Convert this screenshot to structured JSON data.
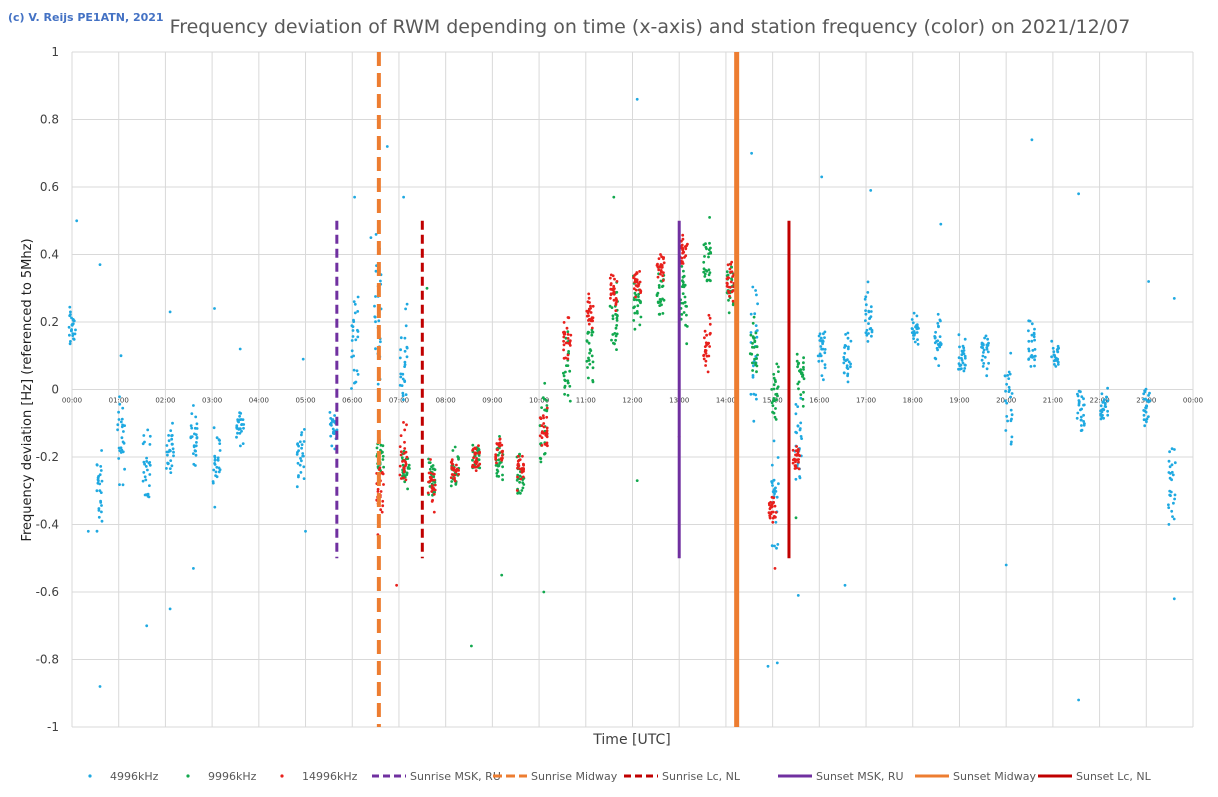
{
  "copyright": "(c) V. Reijs  PE1ATN, 2021",
  "chart_data": {
    "type": "scatter",
    "title": "Frequency deviation of RWM depending on time (x-axis) and station frequency (color) on 2021/12/07",
    "xlabel": "Time [UTC]",
    "ylabel": "Frequency deviation [Hz] (referenced to 5Mhz)",
    "xlim": [
      0,
      24
    ],
    "ylim": [
      -1,
      1
    ],
    "y_ticks": [
      "1",
      "0.8",
      "0.6",
      "0.4",
      "0.2",
      "0",
      "-0.2",
      "-0.4",
      "-0.6",
      "-0.8",
      "-1"
    ],
    "x_ticks": [
      "00:00",
      "01:00",
      "02:00",
      "03:00",
      "04:00",
      "05:00",
      "06:00",
      "07:00",
      "08:00",
      "09:00",
      "10:00",
      "11:00",
      "12:00",
      "13:00",
      "14:00",
      "15:00",
      "16:00",
      "17:00",
      "18:00",
      "19:00",
      "20:00",
      "21:00",
      "22:00",
      "23:00",
      "00:00"
    ],
    "grid": true,
    "legend_position": "bottom",
    "series": [
      {
        "name": "4996kHz",
        "color": "#1fa9e1",
        "clusters": [
          [
            0.0,
            0.18,
            0.06
          ],
          [
            0.6,
            -0.3,
            0.1
          ],
          [
            1.05,
            -0.15,
            0.12
          ],
          [
            1.6,
            -0.22,
            0.09
          ],
          [
            2.1,
            -0.18,
            0.08
          ],
          [
            2.6,
            -0.15,
            0.08
          ],
          [
            3.1,
            -0.22,
            0.1
          ],
          [
            3.6,
            -0.1,
            0.05
          ],
          [
            4.9,
            -0.2,
            0.08
          ],
          [
            5.6,
            -0.12,
            0.06
          ],
          [
            6.05,
            0.15,
            0.15
          ],
          [
            6.55,
            0.25,
            0.17
          ],
          [
            7.1,
            0.1,
            0.15
          ],
          [
            14.6,
            0.1,
            0.2
          ],
          [
            15.05,
            -0.3,
            0.14
          ],
          [
            15.55,
            -0.15,
            0.1
          ],
          [
            16.05,
            0.12,
            0.08
          ],
          [
            16.6,
            0.08,
            0.07
          ],
          [
            17.05,
            0.22,
            0.09
          ],
          [
            18.05,
            0.18,
            0.04
          ],
          [
            18.55,
            0.14,
            0.06
          ],
          [
            19.05,
            0.1,
            0.06
          ],
          [
            19.55,
            0.1,
            0.06
          ],
          [
            20.05,
            -0.05,
            0.13
          ],
          [
            20.55,
            0.12,
            0.07
          ],
          [
            21.05,
            0.1,
            0.05
          ],
          [
            21.6,
            -0.08,
            0.07
          ],
          [
            22.1,
            -0.05,
            0.05
          ],
          [
            23.0,
            -0.05,
            0.06
          ],
          [
            23.55,
            -0.28,
            0.12
          ]
        ],
        "outliers": [
          [
            0.1,
            0.5
          ],
          [
            0.35,
            -0.42
          ],
          [
            0.6,
            0.37
          ],
          [
            0.6,
            -0.88
          ],
          [
            1.05,
            0.1
          ],
          [
            1.6,
            -0.7
          ],
          [
            2.1,
            -0.65
          ],
          [
            2.1,
            0.23
          ],
          [
            2.6,
            -0.53
          ],
          [
            3.05,
            0.24
          ],
          [
            3.6,
            0.12
          ],
          [
            4.95,
            0.09
          ],
          [
            5.0,
            -0.42
          ],
          [
            6.05,
            0.57
          ],
          [
            6.4,
            0.45
          ],
          [
            6.75,
            0.72
          ],
          [
            7.1,
            0.57
          ],
          [
            12.1,
            0.86
          ],
          [
            14.55,
            0.7
          ],
          [
            14.9,
            -0.82
          ],
          [
            15.1,
            -0.81
          ],
          [
            15.55,
            -0.61
          ],
          [
            16.05,
            0.63
          ],
          [
            16.55,
            -0.58
          ],
          [
            17.1,
            0.59
          ],
          [
            18.6,
            0.49
          ],
          [
            20.0,
            -0.52
          ],
          [
            20.55,
            0.74
          ],
          [
            21.55,
            -0.92
          ],
          [
            21.55,
            0.58
          ],
          [
            23.6,
            -0.62
          ],
          [
            23.05,
            0.32
          ],
          [
            23.6,
            0.27
          ]
        ]
      },
      {
        "name": "9996kHz",
        "color": "#12a84e",
        "clusters": [
          [
            6.6,
            -0.2,
            0.05
          ],
          [
            7.15,
            -0.24,
            0.05
          ],
          [
            7.7,
            -0.26,
            0.06
          ],
          [
            8.2,
            -0.24,
            0.05
          ],
          [
            8.65,
            -0.2,
            0.06
          ],
          [
            9.15,
            -0.22,
            0.06
          ],
          [
            9.6,
            -0.25,
            0.07
          ],
          [
            10.1,
            -0.1,
            0.1
          ],
          [
            10.6,
            0.05,
            0.1
          ],
          [
            11.1,
            0.12,
            0.1
          ],
          [
            11.6,
            0.22,
            0.1
          ],
          [
            12.1,
            0.27,
            0.1
          ],
          [
            12.6,
            0.3,
            0.09
          ],
          [
            13.1,
            0.25,
            0.1
          ],
          [
            13.6,
            0.38,
            0.09
          ],
          [
            14.1,
            0.3,
            0.07
          ],
          [
            14.6,
            0.12,
            0.08
          ],
          [
            15.05,
            0.0,
            0.1
          ],
          [
            15.6,
            0.05,
            0.08
          ]
        ],
        "outliers": [
          [
            11.6,
            0.57
          ],
          [
            10.1,
            -0.6
          ],
          [
            8.55,
            -0.76
          ],
          [
            15.5,
            -0.38
          ],
          [
            12.1,
            -0.27
          ],
          [
            13.65,
            0.51
          ],
          [
            9.2,
            -0.55
          ],
          [
            7.6,
            0.3
          ]
        ]
      },
      {
        "name": "14996kHz",
        "color": "#e8201c",
        "clusters": [
          [
            6.6,
            -0.3,
            0.08
          ],
          [
            7.1,
            -0.2,
            0.08
          ],
          [
            7.7,
            -0.28,
            0.06
          ],
          [
            8.2,
            -0.24,
            0.04
          ],
          [
            8.65,
            -0.2,
            0.04
          ],
          [
            9.15,
            -0.18,
            0.04
          ],
          [
            9.6,
            -0.24,
            0.05
          ],
          [
            10.1,
            -0.12,
            0.05
          ],
          [
            10.6,
            0.15,
            0.05
          ],
          [
            11.1,
            0.23,
            0.05
          ],
          [
            11.6,
            0.28,
            0.05
          ],
          [
            12.1,
            0.32,
            0.04
          ],
          [
            12.6,
            0.36,
            0.04
          ],
          [
            13.1,
            0.41,
            0.04
          ],
          [
            13.6,
            0.15,
            0.07
          ],
          [
            14.1,
            0.32,
            0.05
          ],
          [
            15.0,
            -0.35,
            0.04
          ],
          [
            15.5,
            -0.2,
            0.04
          ]
        ],
        "outliers": [
          [
            6.95,
            -0.58
          ],
          [
            6.55,
            -0.43
          ],
          [
            12.6,
            0.4
          ],
          [
            13.0,
            -0.14
          ],
          [
            15.05,
            -0.53
          ]
        ]
      }
    ],
    "vertical_lines": [
      {
        "name": "Sunrise MSK, RU",
        "color": "#7030a0",
        "dash": true,
        "width": 3,
        "x": 5.67,
        "y0": -0.5,
        "y1": 0.5
      },
      {
        "name": "Sunrise Midway",
        "color": "#ed7d31",
        "dash": true,
        "width": 4,
        "x": 6.57,
        "y0": -1,
        "y1": 1
      },
      {
        "name": "Sunrise Lc, NL",
        "color": "#c00000",
        "dash": true,
        "width": 3,
        "x": 7.5,
        "y0": -0.5,
        "y1": 0.5
      },
      {
        "name": "Sunset MSK, RU",
        "color": "#7030a0",
        "dash": false,
        "width": 3,
        "x": 13.0,
        "y0": -0.5,
        "y1": 0.5
      },
      {
        "name": "Sunset Midway",
        "color": "#ed7d31",
        "dash": false,
        "width": 5,
        "x": 14.23,
        "y0": -1,
        "y1": 1
      },
      {
        "name": "Sunset Lc, NL",
        "color": "#c00000",
        "dash": false,
        "width": 3,
        "x": 15.35,
        "y0": -0.5,
        "y1": 0.5
      }
    ]
  }
}
